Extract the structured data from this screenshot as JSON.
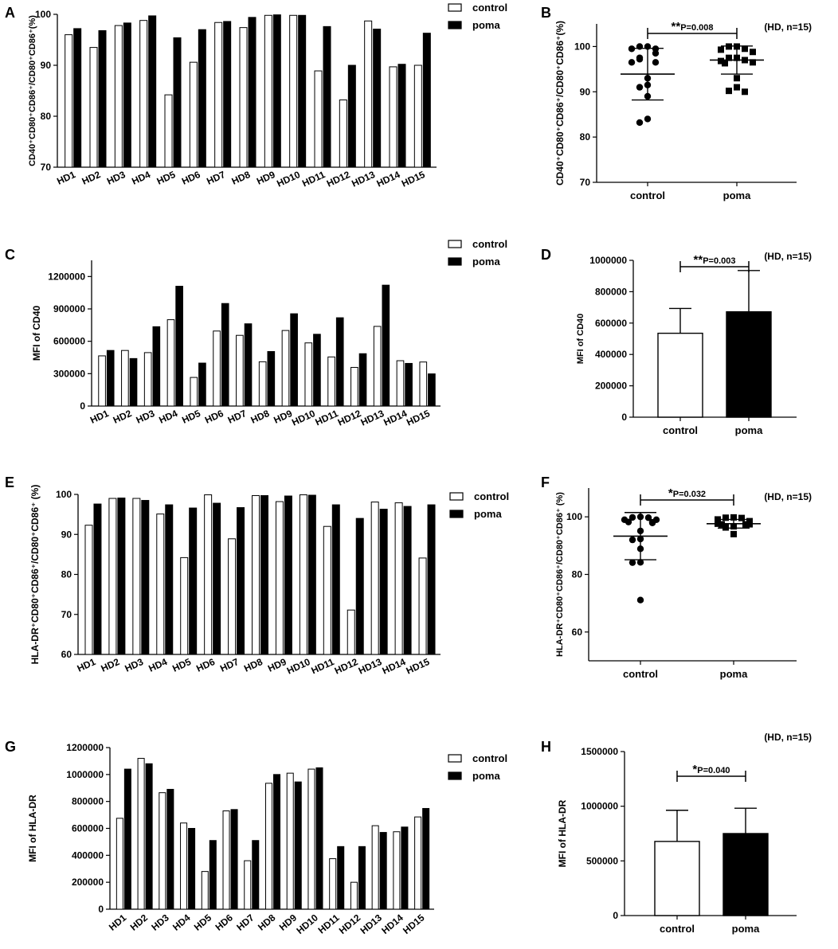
{
  "figure": {
    "title": "Figure panels A–H: control vs poma (HD, n=15)"
  },
  "chart_data": [
    {
      "panel": "A",
      "type": "bar",
      "categories": [
        "HD1",
        "HD2",
        "HD3",
        "HD4",
        "HD5",
        "HD6",
        "HD7",
        "HD8",
        "HD9",
        "HD10",
        "HD11",
        "HD12",
        "HD13",
        "HD14",
        "HD15"
      ],
      "series": [
        {
          "name": "control",
          "values": [
            96.0,
            93.5,
            97.8,
            98.8,
            84.2,
            90.6,
            98.4,
            97.4,
            99.8,
            99.8,
            88.9,
            83.2,
            98.7,
            89.7,
            90.0
          ]
        },
        {
          "name": "poma",
          "values": [
            97.2,
            96.8,
            98.3,
            99.7,
            95.4,
            97.0,
            98.6,
            99.4,
            99.9,
            99.8,
            97.6,
            90.0,
            97.1,
            90.2,
            96.3
          ]
        }
      ],
      "ylim": [
        70,
        100
      ],
      "yticks": [
        70,
        80,
        90,
        100
      ],
      "ylabel": "CD40⁺CD80⁺CD86⁺/CD80⁺CD86⁺(%)"
    },
    {
      "panel": "B",
      "type": "scatter",
      "groups": [
        "control",
        "poma"
      ],
      "points": [
        [
          100,
          100,
          99.5,
          99.5,
          98.5,
          97.5,
          97.2,
          96.5,
          96.5,
          93.0,
          91.5,
          91.0,
          89.0,
          84.0,
          83.2
        ],
        [
          100,
          100,
          99.5,
          99.3,
          98.8,
          97.5,
          97.5,
          97.0,
          96.8,
          96.5,
          96.3,
          93.0,
          91.0,
          90.2,
          90.0
        ]
      ],
      "mean": [
        93.9,
        97.0
      ],
      "sd": [
        5.7,
        3.1
      ],
      "ylim": [
        70,
        105
      ],
      "yticks": [
        70,
        80,
        90,
        100
      ],
      "ylabel": "CD40⁺CD80⁺CD86⁺/CD80⁺CD86⁺(%)",
      "sig_stars": "**",
      "sig_text": "P=0.008",
      "note": "(HD, n=15)"
    },
    {
      "panel": "C",
      "type": "bar",
      "categories": [
        "HD1",
        "HD2",
        "HD3",
        "HD4",
        "HD5",
        "HD6",
        "HD7",
        "HD8",
        "HD9",
        "HD10",
        "HD11",
        "HD12",
        "HD13",
        "HD14",
        "HD15"
      ],
      "series": [
        {
          "name": "control",
          "values": [
            465000,
            515000,
            495000,
            800000,
            265000,
            695000,
            655000,
            410000,
            700000,
            585000,
            455000,
            358000,
            738000,
            420000,
            408000
          ]
        },
        {
          "name": "poma",
          "values": [
            515000,
            440000,
            735000,
            1110000,
            398000,
            950000,
            762000,
            505000,
            855000,
            665000,
            818000,
            485000,
            1120000,
            395000,
            298000
          ]
        }
      ],
      "ylim": [
        0,
        1350000
      ],
      "yticks": [
        0,
        300000,
        600000,
        900000,
        1200000
      ],
      "ylabel": "MFI of CD40"
    },
    {
      "panel": "D",
      "type": "bar",
      "groups": [
        "control",
        "poma"
      ],
      "values": [
        535000,
        672000
      ],
      "sd": [
        158000,
        263000
      ],
      "ylim": [
        0,
        1000000
      ],
      "yticks": [
        0,
        200000,
        400000,
        600000,
        800000,
        1000000
      ],
      "ylabel": "MFI of CD40",
      "sig_stars": "**",
      "sig_text": "P=0.003",
      "note": "(HD, n=15)"
    },
    {
      "panel": "E",
      "type": "bar",
      "categories": [
        "HD1",
        "HD2",
        "HD3",
        "HD4",
        "HD5",
        "HD6",
        "HD7",
        "HD8",
        "HD9",
        "HD10",
        "HD11",
        "HD12",
        "HD13",
        "HD14",
        "HD15"
      ],
      "series": [
        {
          "name": "control",
          "values": [
            92.3,
            99.0,
            99.0,
            95.1,
            84.2,
            99.9,
            88.9,
            99.7,
            98.2,
            99.9,
            92.0,
            71.1,
            98.1,
            97.9,
            84.1
          ]
        },
        {
          "name": "poma",
          "values": [
            97.6,
            99.1,
            98.5,
            97.4,
            96.6,
            97.8,
            96.7,
            99.7,
            99.6,
            99.8,
            97.4,
            94.0,
            96.3,
            97.0,
            97.4
          ]
        }
      ],
      "ylim": [
        60,
        100
      ],
      "yticks": [
        60,
        70,
        80,
        90,
        100
      ],
      "ylabel": "HLA-DR⁺CD80⁺CD86⁺/CD80⁺CD86⁺ (%)"
    },
    {
      "panel": "F",
      "type": "scatter",
      "groups": [
        "control",
        "poma"
      ],
      "points": [
        [
          100,
          99.8,
          99.7,
          99.0,
          99.0,
          98.2,
          98.1,
          97.9,
          95.1,
          92.3,
          92.0,
          88.9,
          84.2,
          84.1,
          71.1
        ],
        [
          99.8,
          99.7,
          99.6,
          99.1,
          98.5,
          97.8,
          97.6,
          97.4,
          97.4,
          97.4,
          97.0,
          96.7,
          96.6,
          96.3,
          94.0
        ]
      ],
      "mean": [
        93.3,
        97.6
      ],
      "sd": [
        8.2,
        1.5
      ],
      "ylim": [
        50,
        110
      ],
      "yticks": [
        60,
        80,
        100
      ],
      "ylabel": "HLA-DR⁺CD80⁺CD86⁺/CD80⁺CD86⁺ (%)",
      "sig_stars": "*",
      "sig_text": "P=0.032",
      "note": "(HD, n=15)"
    },
    {
      "panel": "G",
      "type": "bar",
      "categories": [
        "HD1",
        "HD2",
        "HD3",
        "HD4",
        "HD5",
        "HD6",
        "HD7",
        "HD8",
        "HD9",
        "HD10",
        "HD11",
        "HD12",
        "HD13",
        "HD14",
        "HD15"
      ],
      "series": [
        {
          "name": "control",
          "values": [
            675000,
            1120000,
            865000,
            640000,
            280000,
            730000,
            360000,
            935000,
            1010000,
            1040000,
            375000,
            200000,
            620000,
            575000,
            685000
          ]
        },
        {
          "name": "poma",
          "values": [
            1040000,
            1080000,
            890000,
            600000,
            510000,
            740000,
            510000,
            1000000,
            945000,
            1050000,
            465000,
            465000,
            570000,
            610000,
            748000
          ]
        }
      ],
      "ylim": [
        0,
        1200000
      ],
      "yticks": [
        0,
        200000,
        400000,
        600000,
        800000,
        1000000,
        1200000
      ],
      "ylabel": "MFI of HLA-DR"
    },
    {
      "panel": "H",
      "type": "bar",
      "groups": [
        "control",
        "poma"
      ],
      "values": [
        678000,
        750000
      ],
      "sd": [
        285000,
        232000
      ],
      "ylim": [
        0,
        1500000
      ],
      "yticks": [
        0,
        500000,
        1000000,
        1500000
      ],
      "ylabel": "MFI of HLA-DR",
      "sig_stars": "*",
      "sig_text": "P=0.040",
      "note": "(HD, n=15)"
    }
  ]
}
